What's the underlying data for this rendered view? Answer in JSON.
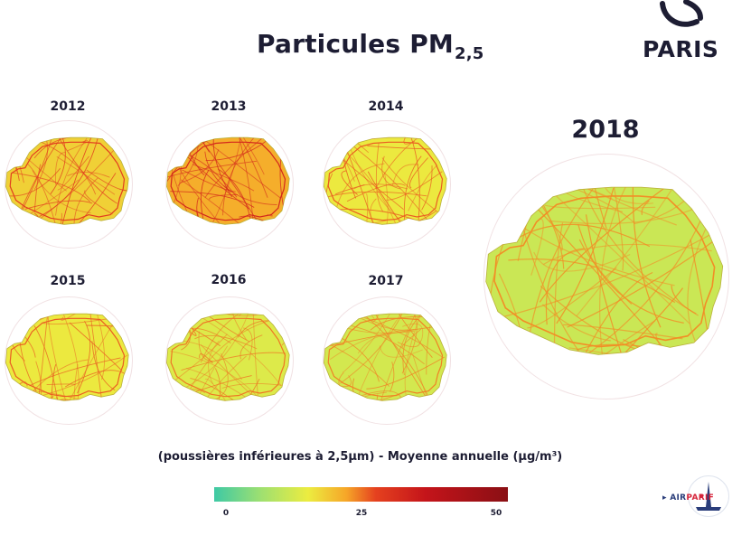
{
  "title": {
    "main": "Particules PM",
    "subscript": "2,5"
  },
  "logo": {
    "text": "PARIS",
    "icon": "paris-boat-icon"
  },
  "maps": [
    {
      "year": "2012",
      "level": 20
    },
    {
      "year": "2013",
      "level": 24
    },
    {
      "year": "2014",
      "level": 17
    },
    {
      "year": "2015",
      "level": 17
    },
    {
      "year": "2016",
      "level": 15
    },
    {
      "year": "2017",
      "level": 14
    },
    {
      "year": "2018",
      "level": 13
    }
  ],
  "caption": "(poussières inférieures à 2,5µm) - Moyenne annuelle (µg/m³)",
  "scale": {
    "ticks": [
      "0",
      "25",
      "50"
    ],
    "min": 0,
    "max": 50,
    "colors": [
      "#3ec9a5",
      "#9fe070",
      "#ecec40",
      "#f6a628",
      "#e5411f",
      "#c4141a",
      "#8a0f14"
    ]
  },
  "airparif": {
    "prefix": "AIR",
    "suffix": "PARIF",
    "icon": "airparif-eiffel-icon"
  }
}
